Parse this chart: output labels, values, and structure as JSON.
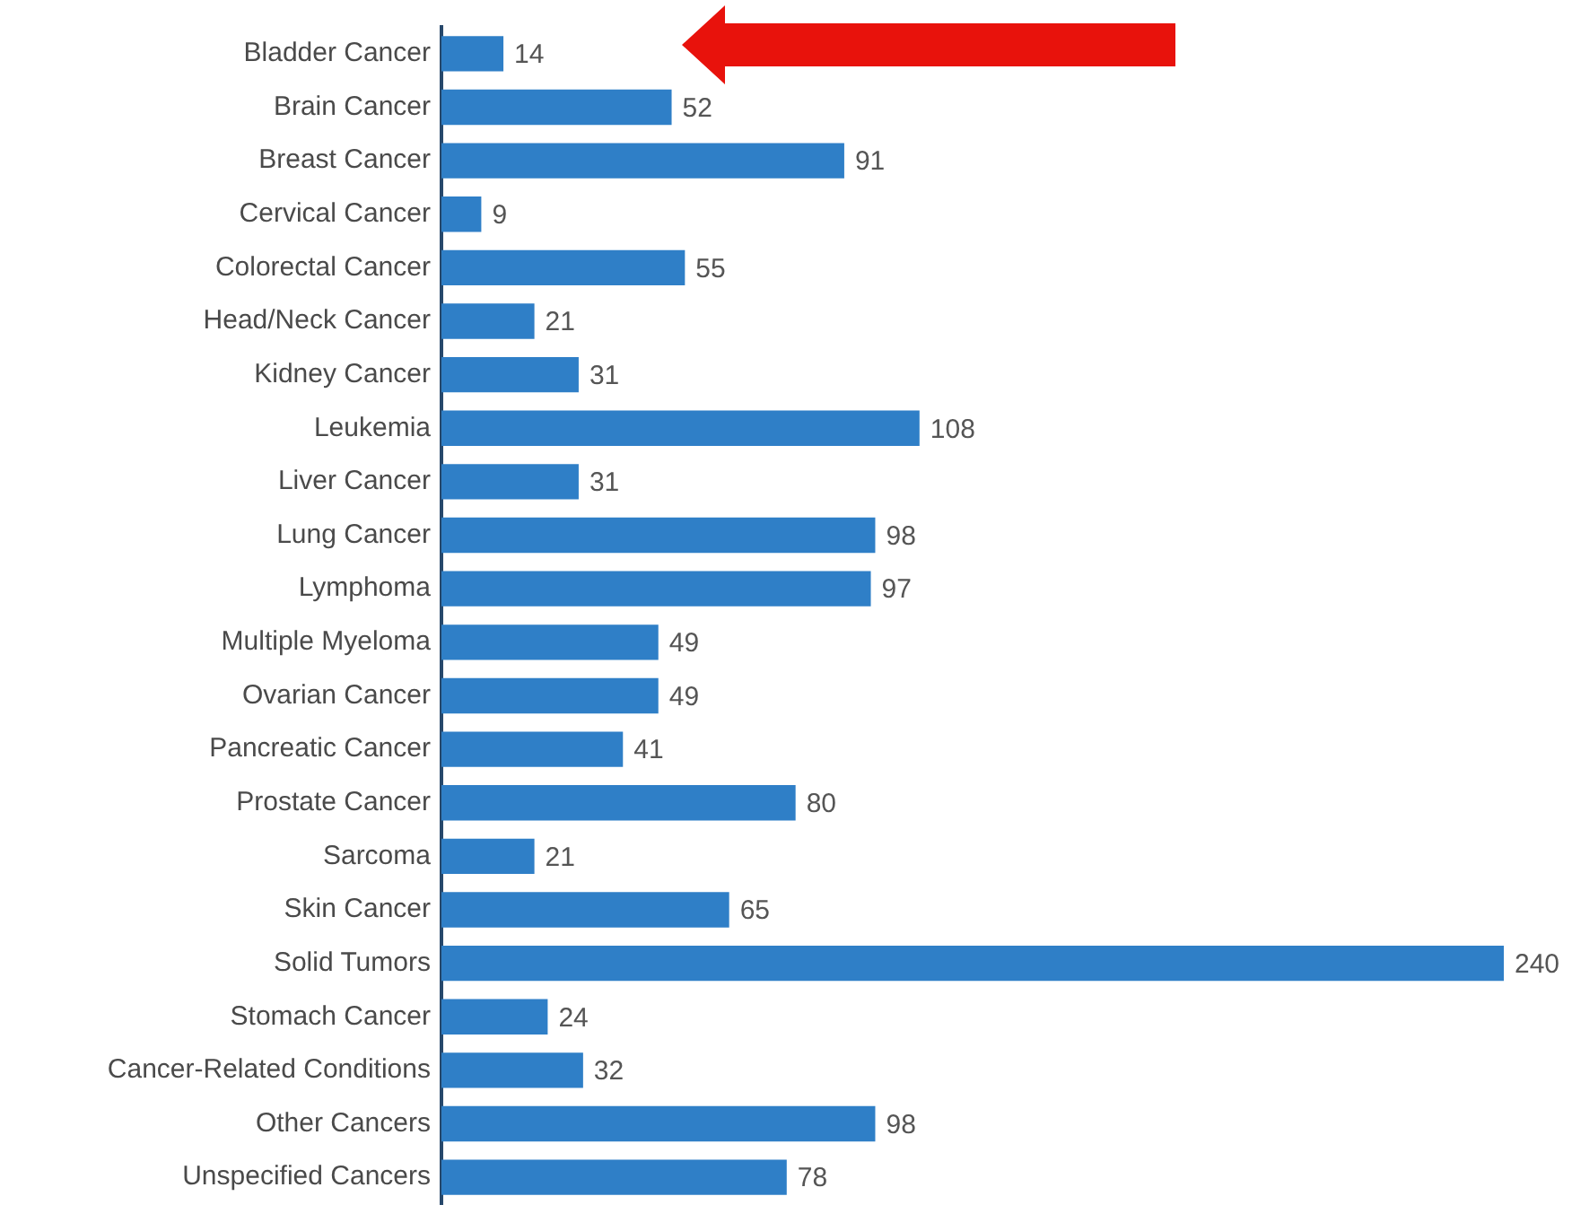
{
  "chart_data": {
    "type": "bar",
    "orientation": "horizontal",
    "categories": [
      "Bladder Cancer",
      "Brain Cancer",
      "Breast Cancer",
      "Cervical Cancer",
      "Colorectal Cancer",
      "Head/Neck Cancer",
      "Kidney Cancer",
      "Leukemia",
      "Liver Cancer",
      "Lung Cancer",
      "Lymphoma",
      "Multiple Myeloma",
      "Ovarian Cancer",
      "Pancreatic Cancer",
      "Prostate Cancer",
      "Sarcoma",
      "Skin Cancer",
      "Solid Tumors",
      "Stomach Cancer",
      "Cancer-Related Conditions",
      "Other Cancers",
      "Unspecified Cancers"
    ],
    "values": [
      14,
      52,
      91,
      9,
      55,
      21,
      31,
      108,
      31,
      98,
      97,
      49,
      49,
      41,
      80,
      21,
      65,
      240,
      24,
      32,
      98,
      78
    ],
    "color": "#2f7fc7",
    "xlim": [
      0,
      240
    ],
    "data_labels": true,
    "tick_labels": "y"
  }
}
